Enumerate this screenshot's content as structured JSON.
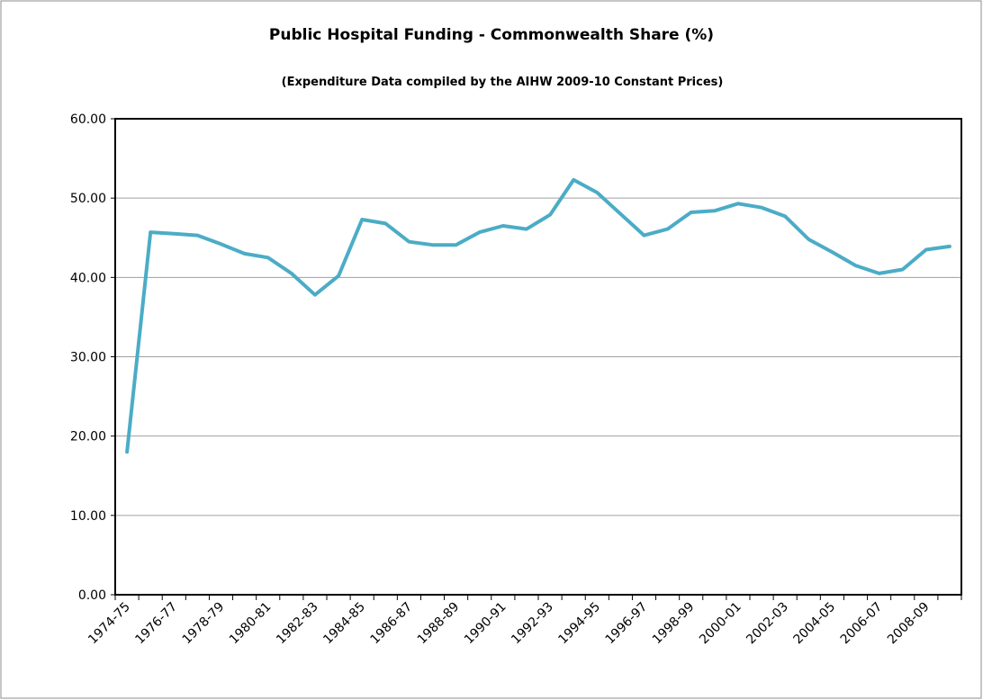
{
  "chart_data": {
    "type": "line",
    "title": "Public Hospital Funding - Commonwealth Share (%)",
    "subtitle": "(Expenditure Data  compiled by the AIHW  2009-10 Constant Prices)",
    "categories": [
      "1974-75",
      null,
      "1976-77",
      null,
      "1978-79",
      null,
      "1980-81",
      null,
      "1982-83",
      null,
      "1984-85",
      null,
      "1986-87",
      null,
      "1988-89",
      null,
      "1990-91",
      null,
      "1992-93",
      null,
      "1994-95",
      null,
      "1996-97",
      null,
      "1998-99",
      null,
      "2000-01",
      null,
      "2002-03",
      null,
      "2004-05",
      null,
      "2006-07",
      null,
      "2008-09",
      null
    ],
    "values": [
      18.0,
      45.7,
      45.5,
      45.3,
      44.2,
      43.0,
      42.5,
      40.5,
      37.8,
      40.2,
      47.3,
      46.8,
      44.5,
      44.1,
      44.1,
      45.7,
      46.5,
      46.1,
      47.9,
      52.3,
      50.7,
      48.0,
      45.3,
      46.1,
      48.2,
      48.4,
      49.3,
      48.8,
      47.7,
      44.8,
      43.2,
      41.5,
      40.5,
      41.0,
      43.5,
      43.9
    ],
    "color": "#4bacc6",
    "ylim": [
      0,
      60
    ],
    "yticks": [
      {
        "value": 0,
        "label": "0.00"
      },
      {
        "value": 10,
        "label": "10.00"
      },
      {
        "value": 20,
        "label": "20.00"
      },
      {
        "value": 30,
        "label": "30.00"
      },
      {
        "value": 40,
        "label": "40.00"
      },
      {
        "value": 50,
        "label": "50.00"
      },
      {
        "value": 60,
        "label": "60.00"
      }
    ],
    "grid": true
  }
}
